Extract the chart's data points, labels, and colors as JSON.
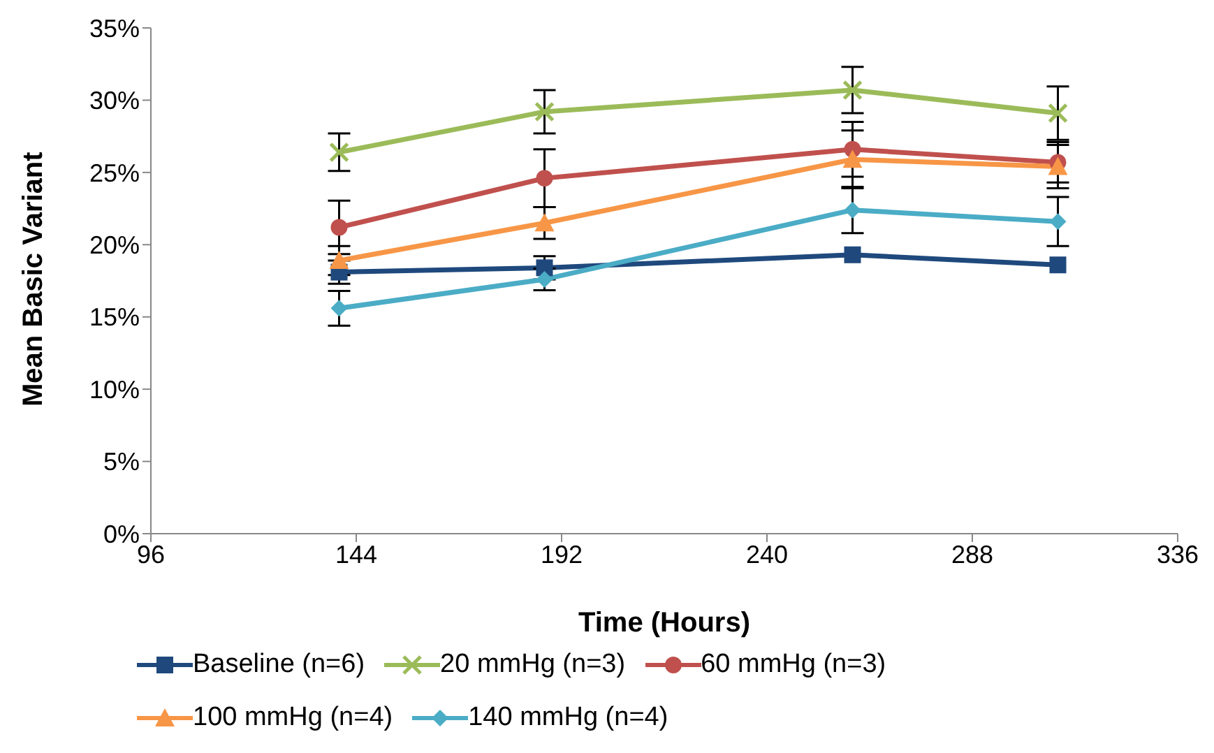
{
  "chart_data": {
    "type": "line",
    "xlabel": "Time (Hours)",
    "ylabel": "Mean Basic Variant",
    "x": [
      140,
      188,
      260,
      308
    ],
    "xlim": [
      96,
      336
    ],
    "xticks": [
      96,
      144,
      192,
      240,
      288,
      336
    ],
    "ylim": [
      0,
      35
    ],
    "yticks": [
      {
        "value": 0,
        "label": "0%"
      },
      {
        "value": 5,
        "label": "5%"
      },
      {
        "value": 10,
        "label": "10%"
      },
      {
        "value": 15,
        "label": "15%"
      },
      {
        "value": 20,
        "label": "20%"
      },
      {
        "value": 25,
        "label": "25%"
      },
      {
        "value": 30,
        "label": "30%"
      },
      {
        "value": 35,
        "label": "35%"
      }
    ],
    "legend": "bottom",
    "series": [
      {
        "name": "Baseline (n=6)",
        "color": "#1f497d",
        "marker": "square",
        "values": [
          18.1,
          18.4,
          19.3,
          18.6
        ],
        "errors": [
          0.8,
          0.8,
          null,
          null
        ]
      },
      {
        "name": "20 mmHg (n=3)",
        "color": "#9bbb59",
        "marker": "cross",
        "values": [
          26.4,
          29.2,
          30.7,
          29.1
        ],
        "errors": [
          1.3,
          1.5,
          1.6,
          1.85
        ]
      },
      {
        "name": "60 mmHg (n=3)",
        "color": "#c0504d",
        "marker": "circle",
        "values": [
          21.2,
          24.6,
          26.6,
          25.7
        ],
        "errors": [
          1.85,
          2.0,
          1.9,
          1.4
        ]
      },
      {
        "name": "100 mmHg (n=4)",
        "color": "#f79646",
        "marker": "triangle",
        "values": [
          18.9,
          21.5,
          25.9,
          25.4
        ],
        "errors": [
          1.0,
          1.1,
          2.0,
          1.5
        ]
      },
      {
        "name": "140 mmHg (n=4)",
        "color": "#4bacc6",
        "marker": "diamond",
        "values": [
          15.6,
          17.6,
          22.4,
          21.6
        ],
        "errors": [
          1.2,
          0.75,
          1.6,
          1.7
        ]
      }
    ]
  }
}
